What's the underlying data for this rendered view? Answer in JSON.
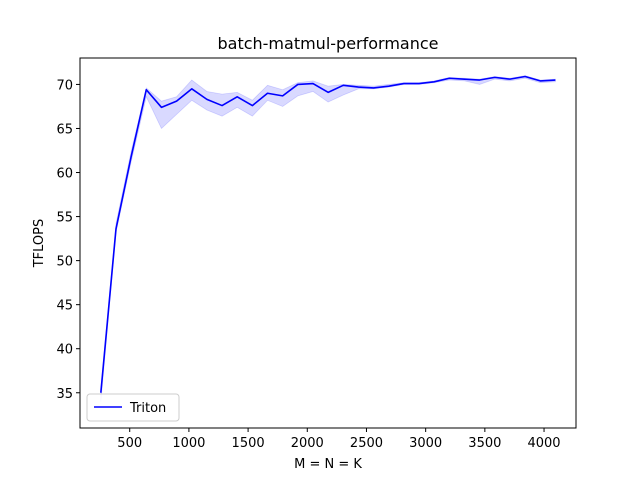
{
  "chart_data": {
    "type": "line",
    "title": "batch-matmul-performance",
    "xlabel": "M = N = K",
    "ylabel": "TFLOPS",
    "xlim": [
      80,
      4270
    ],
    "ylim": [
      31,
      73
    ],
    "xticks": [
      500,
      1000,
      1500,
      2000,
      2500,
      3000,
      3500,
      4000
    ],
    "yticks": [
      35,
      40,
      45,
      50,
      55,
      60,
      65,
      70
    ],
    "grid": false,
    "legend_position": "lower-left",
    "colors": {
      "line": "#0000ff",
      "band": "#0000ff"
    },
    "series": [
      {
        "name": "Triton",
        "x": [
          256,
          384,
          512,
          640,
          768,
          896,
          1024,
          1152,
          1280,
          1408,
          1536,
          1664,
          1792,
          1920,
          2048,
          2176,
          2304,
          2432,
          2560,
          2688,
          2816,
          2944,
          3072,
          3200,
          3328,
          3456,
          3584,
          3712,
          3840,
          3968,
          4096
        ],
        "y": [
          35.0,
          53.6,
          61.8,
          69.4,
          67.4,
          68.1,
          69.5,
          68.3,
          67.6,
          68.6,
          67.6,
          69.0,
          68.7,
          70.0,
          70.1,
          69.1,
          69.9,
          69.7,
          69.6,
          69.8,
          70.1,
          70.1,
          70.3,
          70.7,
          70.6,
          70.5,
          70.8,
          70.6,
          70.9,
          70.4,
          70.5
        ],
        "y_low": [
          34.0,
          53.2,
          61.2,
          68.6,
          65.0,
          66.6,
          68.2,
          67.1,
          66.4,
          67.4,
          66.4,
          68.2,
          67.5,
          68.7,
          69.2,
          68.0,
          68.8,
          69.5,
          69.5,
          69.7,
          70.0,
          70.0,
          70.2,
          70.5,
          70.4,
          70.0,
          70.6,
          70.4,
          70.7,
          70.2,
          70.3
        ],
        "y_high": [
          35.4,
          54.2,
          62.4,
          69.6,
          68.1,
          68.6,
          70.5,
          69.2,
          68.9,
          69.1,
          68.2,
          69.9,
          69.4,
          70.2,
          70.4,
          69.8,
          70.0,
          69.9,
          69.8,
          70.0,
          70.2,
          70.2,
          70.4,
          70.8,
          70.7,
          70.6,
          70.9,
          70.7,
          71.0,
          70.5,
          70.6
        ]
      }
    ]
  }
}
